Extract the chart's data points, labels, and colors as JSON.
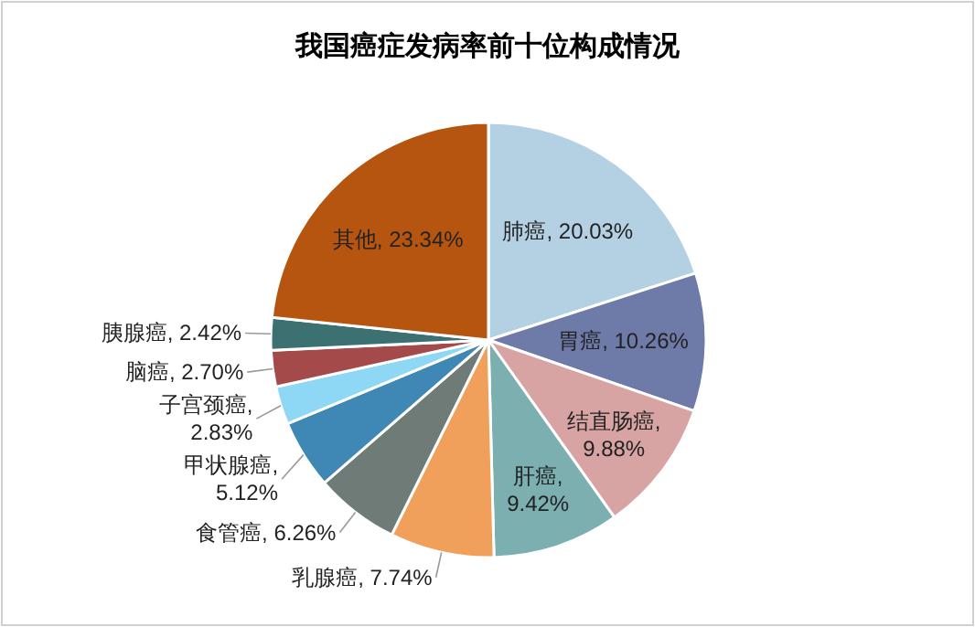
{
  "chart_data": {
    "type": "pie",
    "title": "我国癌症发病率前十位构成情况",
    "categories": [
      "肺癌",
      "胃癌",
      "结直肠癌",
      "肝癌",
      "乳腺癌",
      "食管癌",
      "甲状腺癌",
      "子宫颈癌",
      "脑癌",
      "胰腺癌",
      "其他"
    ],
    "values": [
      20.03,
      10.26,
      9.88,
      9.42,
      7.74,
      6.26,
      5.12,
      2.83,
      2.7,
      2.42,
      23.34
    ],
    "colors": [
      "#b4d1e4",
      "#6e7aa8",
      "#d8a3a3",
      "#7bafb0",
      "#f0a05a",
      "#6e7b76",
      "#3f87b5",
      "#8fd8f5",
      "#a54a4a",
      "#3d7070",
      "#b65510"
    ],
    "value_labels": [
      ", 20.03%",
      ", 10.26%",
      ", 9.88%",
      ", 9.42%",
      ", 7.74%",
      ", 6.26%",
      ", 5.12%",
      ", 2.83%",
      ", 2.70%",
      ", 2.42%",
      ", 23.34%"
    ]
  }
}
